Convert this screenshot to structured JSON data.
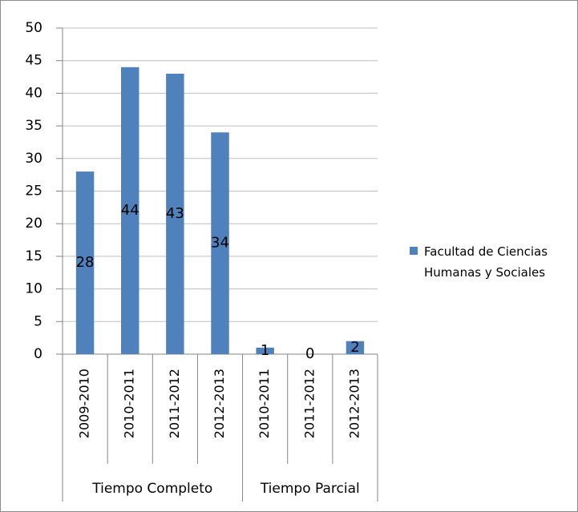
{
  "chart_data": {
    "type": "bar",
    "groups": [
      {
        "name": "Tiempo Completo",
        "categories": [
          "2009-2010",
          "2010-2011",
          "2011-2012",
          "2012-2013"
        ]
      },
      {
        "name": "Tiempo Parcial",
        "categories": [
          "2010-2011",
          "2011-2012",
          "2012-2013"
        ]
      }
    ],
    "series": [
      {
        "name": "Facultad de Ciencias Humanas y Sociales",
        "color": "#4f81bd",
        "values": [
          28,
          44,
          43,
          34,
          1,
          0,
          2
        ]
      }
    ],
    "ylim": [
      0,
      50
    ],
    "yticks": [
      0,
      5,
      10,
      15,
      20,
      25,
      30,
      35,
      40,
      45,
      50
    ],
    "grid": true,
    "legend": "right"
  }
}
